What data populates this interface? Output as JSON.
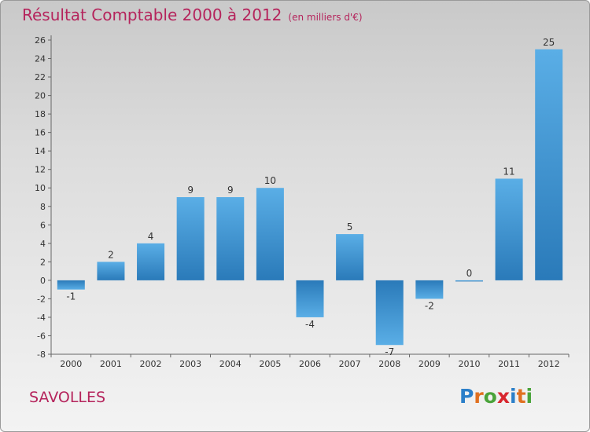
{
  "header": {
    "title": "Résultat Comptable 2000 à 2012",
    "subtitle": "(en milliers d'€)"
  },
  "commune": "SAVOLLES",
  "logo": {
    "text": "Proxiti",
    "letter_colors": [
      "#2b7fc9",
      "#e07020",
      "#4aa33a",
      "#d8262e",
      "#2b7fc9",
      "#e07020",
      "#4aa33a"
    ]
  },
  "colors": {
    "title": "#b5245c",
    "bar_light": "#5aaee6",
    "bar_dark": "#2a7ab9"
  },
  "chart_data": {
    "type": "bar",
    "title": "Résultat Comptable 2000 à 2012",
    "categories": [
      "2000",
      "2001",
      "2002",
      "2003",
      "2004",
      "2005",
      "2006",
      "2007",
      "2008",
      "2009",
      "2010",
      "2011",
      "2012"
    ],
    "values": [
      -1,
      2,
      4,
      9,
      9,
      10,
      -4,
      5,
      -7,
      -2,
      0,
      11,
      25
    ],
    "value_labels": [
      "-1",
      "2",
      "4",
      "9",
      "9",
      "10",
      "-4",
      "5",
      "-7",
      "-2",
      "0",
      "11",
      "25"
    ],
    "ylim": [
      -8,
      26
    ],
    "yticks": [
      -8,
      -6,
      -4,
      -2,
      0,
      2,
      4,
      6,
      8,
      10,
      12,
      14,
      16,
      18,
      20,
      22,
      24,
      26
    ],
    "xlabel": "",
    "ylabel": "",
    "grid": false,
    "legend": "none"
  }
}
